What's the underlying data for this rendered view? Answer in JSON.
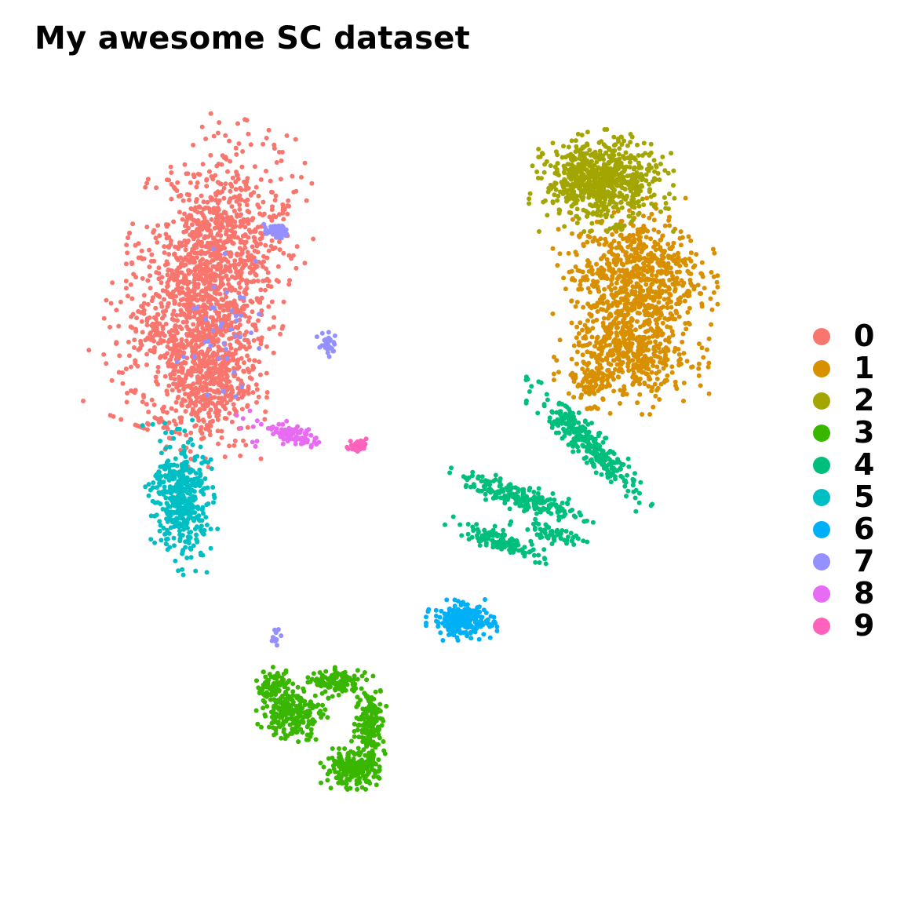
{
  "chart_data": {
    "type": "scatter",
    "title": "My awesome SC dataset",
    "xlabel": "",
    "ylabel": "",
    "xlim": [
      -10,
      10
    ],
    "ylim": [
      -10,
      10
    ],
    "axes_visible": false,
    "grid": false,
    "legend_position": "right",
    "series": [
      {
        "name": "0",
        "color": "#F8766D",
        "clusters": [
          {
            "cx": -5.3,
            "cy": 4.9,
            "sx": 0.9,
            "sy": 1.6,
            "n": 1400,
            "rot": -0.35
          },
          {
            "cx": -5.2,
            "cy": 2.4,
            "sx": 0.6,
            "sy": 0.9,
            "n": 500,
            "rot": -0.1
          },
          {
            "cx": -6.9,
            "cy": 3.6,
            "sx": 0.3,
            "sy": 0.15,
            "n": 20,
            "rot": 0
          }
        ]
      },
      {
        "name": "1",
        "color": "#D89000",
        "clusters": [
          {
            "cx": 6.2,
            "cy": 5.0,
            "sx": 0.85,
            "sy": 0.75,
            "n": 700,
            "rot": 0
          },
          {
            "cx": 6.1,
            "cy": 3.0,
            "sx": 0.8,
            "sy": 0.6,
            "n": 500,
            "rot": 0
          },
          {
            "cx": 5.0,
            "cy": 2.3,
            "sx": 0.35,
            "sy": 0.3,
            "n": 60,
            "rot": 0
          }
        ]
      },
      {
        "name": "2",
        "color": "#A3A500",
        "clusters": [
          {
            "cx": 5.3,
            "cy": 7.4,
            "sx": 0.75,
            "sy": 0.5,
            "n": 700,
            "rot": 0
          }
        ]
      },
      {
        "name": "3",
        "color": "#39B600",
        "clusters": [
          {
            "cx": -3.0,
            "cy": -6.2,
            "sx": 0.4,
            "sy": 0.3,
            "n": 220,
            "rot": 0
          },
          {
            "cx": -1.4,
            "cy": -7.6,
            "sx": 0.35,
            "sy": 0.2,
            "n": 220,
            "rot": 0
          },
          {
            "cx": -0.9,
            "cy": -6.4,
            "sx": 0.2,
            "sy": 0.45,
            "n": 160,
            "rot": 0
          },
          {
            "cx": -1.8,
            "cy": -5.4,
            "sx": 0.3,
            "sy": 0.15,
            "n": 130,
            "rot": 0
          },
          {
            "cx": -3.5,
            "cy": -5.5,
            "sx": 0.25,
            "sy": 0.2,
            "n": 90,
            "rot": 0
          }
        ]
      },
      {
        "name": "4",
        "color": "#00BF7D",
        "clusters": [
          {
            "cx": 4.9,
            "cy": 0.7,
            "sx": 0.9,
            "sy": 0.18,
            "n": 300,
            "rot": -0.75
          },
          {
            "cx": 3.2,
            "cy": -0.7,
            "sx": 0.8,
            "sy": 0.14,
            "n": 220,
            "rot": -0.3
          },
          {
            "cx": 2.6,
            "cy": -1.8,
            "sx": 0.6,
            "sy": 0.12,
            "n": 120,
            "rot": -0.35
          },
          {
            "cx": 4.0,
            "cy": -1.6,
            "sx": 0.5,
            "sy": 0.1,
            "n": 60,
            "rot": -0.25
          }
        ]
      },
      {
        "name": "5",
        "color": "#00BFC4",
        "clusters": [
          {
            "cx": -6.0,
            "cy": -0.7,
            "sx": 0.35,
            "sy": 0.75,
            "n": 420,
            "rot": 0.1
          }
        ]
      },
      {
        "name": "6",
        "color": "#00B0F6",
        "clusters": [
          {
            "cx": 1.5,
            "cy": -3.8,
            "sx": 0.35,
            "sy": 0.2,
            "n": 230,
            "rot": 0
          },
          {
            "cx": 2.1,
            "cy": -3.9,
            "sx": 0.25,
            "sy": 0.08,
            "n": 25,
            "rot": 0
          }
        ]
      },
      {
        "name": "7",
        "color": "#9590FF",
        "clusters": [
          {
            "cx": -3.45,
            "cy": 6.1,
            "sx": 0.15,
            "sy": 0.08,
            "n": 60,
            "rot": 0
          },
          {
            "cx": -2.05,
            "cy": 3.25,
            "sx": 0.12,
            "sy": 0.15,
            "n": 25,
            "rot": 0
          },
          {
            "cx": -3.45,
            "cy": -4.2,
            "sx": 0.06,
            "sy": 0.12,
            "n": 12,
            "rot": 0
          },
          {
            "cx": -5.0,
            "cy": 3.6,
            "sx": 0.5,
            "sy": 0.8,
            "n": 40,
            "rot": 0
          }
        ]
      },
      {
        "name": "8",
        "color": "#E76BF3",
        "clusters": [
          {
            "cx": -2.9,
            "cy": 0.9,
            "sx": 0.3,
            "sy": 0.12,
            "n": 80,
            "rot": -0.3
          },
          {
            "cx": -4.0,
            "cy": 1.1,
            "sx": 0.3,
            "sy": 0.3,
            "n": 12,
            "rot": 0
          }
        ]
      },
      {
        "name": "9",
        "color": "#FF62BC",
        "clusters": [
          {
            "cx": -1.25,
            "cy": 0.65,
            "sx": 0.12,
            "sy": 0.07,
            "n": 40,
            "rot": 0
          }
        ]
      }
    ]
  }
}
